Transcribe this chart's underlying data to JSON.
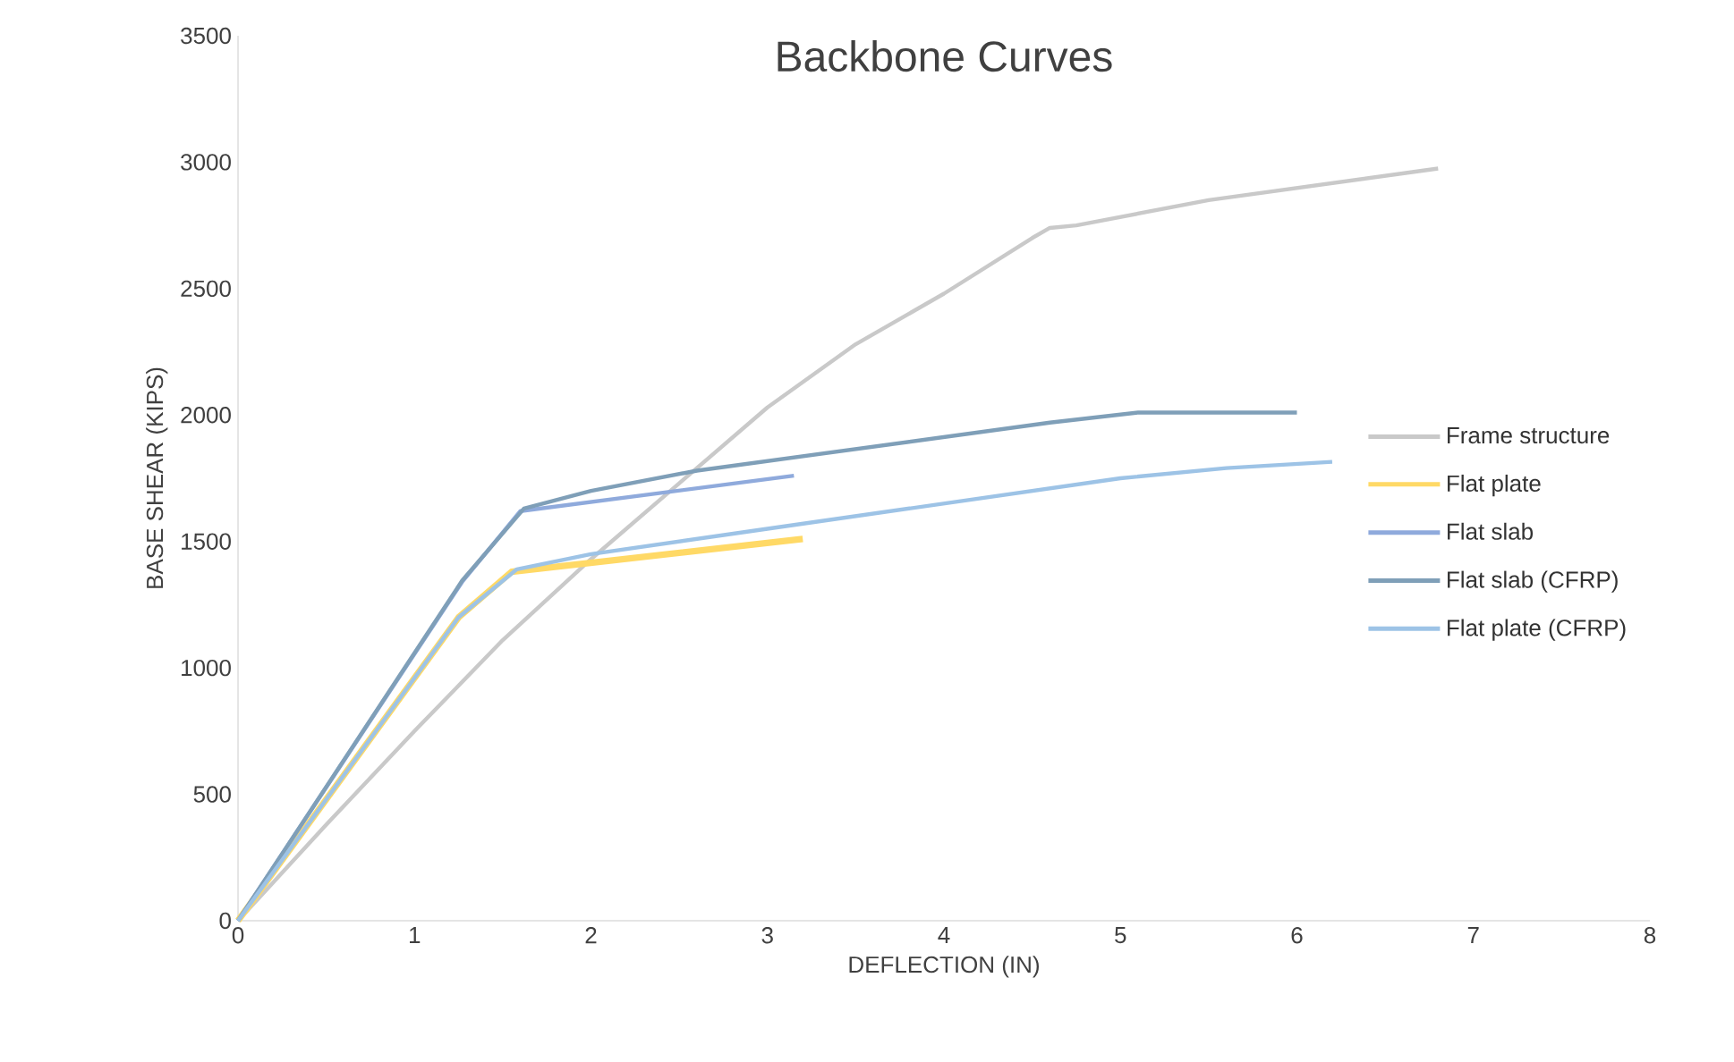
{
  "chart_data": {
    "type": "line",
    "title": "Backbone  Curves",
    "xlabel": "DEFLECTION (IN)",
    "ylabel": "BASE SHEAR (KIPS)",
    "xlim": [
      0,
      8
    ],
    "ylim": [
      0,
      3500
    ],
    "xticks": [
      0,
      1,
      2,
      3,
      4,
      5,
      6,
      7,
      8
    ],
    "yticks": [
      0,
      500,
      1000,
      1500,
      2000,
      2500,
      3000,
      3500
    ],
    "grid": false,
    "legend": "right",
    "marker": "none",
    "line_style": "solid",
    "series": [
      {
        "name": "Frame structure",
        "color": "#c9c9c9",
        "x": [
          0,
          0.5,
          1,
          1.5,
          2,
          2.5,
          3,
          3.5,
          4,
          4.5,
          4.6,
          4.75,
          5.5,
          6.8
        ],
        "values": [
          0,
          380,
          750,
          1110,
          1430,
          1730,
          2030,
          2280,
          2480,
          2700,
          2740,
          2750,
          2850,
          2975
        ]
      },
      {
        "name": "Flat plate",
        "color": "#ffd966",
        "x": [
          0,
          1.25,
          1.55,
          3.2
        ],
        "values": [
          0,
          1200,
          1380,
          1510
        ]
      },
      {
        "name": "Flat slab",
        "color": "#8faadc",
        "x": [
          0,
          1.27,
          1.6,
          3.15
        ],
        "values": [
          0,
          1340,
          1620,
          1760
        ]
      },
      {
        "name": "Flat slab (CFRP)",
        "color": "#7f9fb8",
        "x": [
          0,
          1.27,
          1.62,
          2,
          2.6,
          4.6,
          5.1,
          6
        ],
        "values": [
          0,
          1345,
          1630,
          1700,
          1780,
          1970,
          2010,
          2010
        ]
      },
      {
        "name": "Flat plate (CFRP)",
        "color": "#9dc3e6",
        "x": [
          0,
          1.25,
          1.58,
          2,
          3,
          4,
          5,
          5.6,
          6.2
        ],
        "values": [
          0,
          1200,
          1390,
          1450,
          1550,
          1650,
          1750,
          1790,
          1815
        ]
      }
    ]
  }
}
